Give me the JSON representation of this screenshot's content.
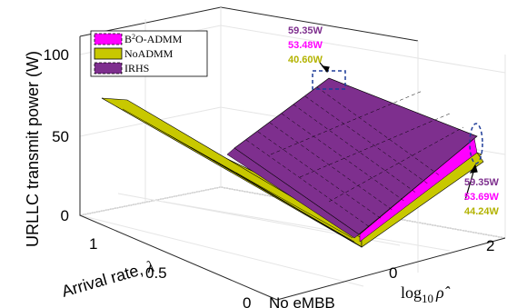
{
  "chart_data": {
    "type": "3d-surface",
    "zlabel": "URLLC transmit power (W)",
    "ylabel_text": "Arrival rate, ",
    "ylabel_symbol": "λ",
    "xlabel_prefix": "log",
    "xlabel_sub": "10",
    "xlabel_symbol": "ρ̂",
    "z_ticks": [
      "0",
      "50",
      "100"
    ],
    "y_ticks": [
      "0",
      "0.5",
      "1"
    ],
    "x_ticks": [
      "No eMBB",
      "0",
      "2"
    ],
    "zlim": [
      0,
      100
    ],
    "series": [
      {
        "name_pre": "B",
        "name_sup": "2",
        "name_post": "O-ADMM",
        "color": "#ff00ff"
      },
      {
        "name": "NoADMM",
        "color": "#c8c800"
      },
      {
        "name": "IRHS",
        "color": "#7e2f8e"
      }
    ],
    "annotations": {
      "top": {
        "values": [
          "59.35W",
          "53.48W",
          "40.60W"
        ],
        "colors": [
          "#7e2f8e",
          "#ff00ff",
          "#b3b300"
        ]
      },
      "right": {
        "values": [
          "59.35W",
          "53.69W",
          "44.24W"
        ],
        "colors": [
          "#7e2f8e",
          "#ff00ff",
          "#b3b300"
        ]
      }
    },
    "corner_values": {
      "IRHS": {
        "left_top": 75,
        "left_bottom": 0,
        "right_top": 59.35,
        "right_bottom": 59.35
      },
      "B2O-ADMM": {
        "right_top": 53.48,
        "right_bottom": 53.69
      },
      "NoADMM": {
        "right_top": 40.6,
        "right_bottom": 44.24
      }
    }
  }
}
